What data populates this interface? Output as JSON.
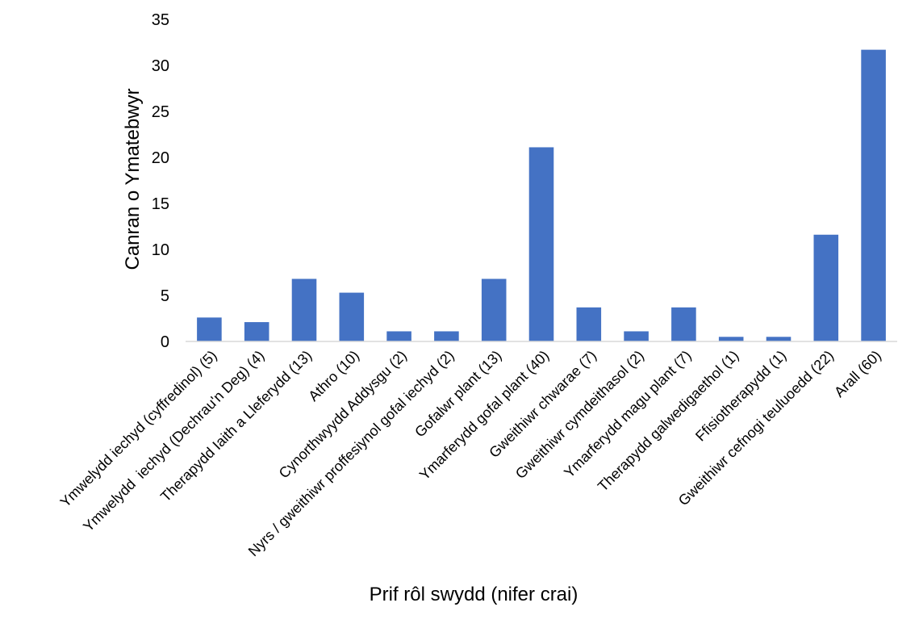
{
  "chart_data": {
    "type": "bar",
    "categories": [
      "Ymwelydd iechyd (cyffredinol) (5)",
      "Ymwelydd  iechyd (Dechrau'n Deg) (4)",
      "Therapydd Iaith a Lleferydd (13)",
      "Athro (10)",
      "Cynorthwyydd Addysgu (2)",
      "Nyrs / gweithiwr proffesiynol gofal iechyd (2)",
      "Gofalwr plant (13)",
      "Ymarferydd gofal plant (40)",
      "Gweithiwr chwarae (7)",
      "Gweithiwr cymdeithasol (2)",
      "Ymarferydd magu plant (7)",
      "Therapydd galwedigaethol (1)",
      "Ffisiotherapydd (1)",
      "Gweithiwr cefnogi teuluoedd (22)",
      "Arall (60)"
    ],
    "values": [
      2.6,
      2.1,
      6.8,
      5.3,
      1.1,
      1.1,
      6.8,
      21.1,
      3.7,
      1.1,
      3.7,
      0.5,
      0.5,
      11.6,
      31.7
    ],
    "ylim": [
      0,
      35
    ],
    "yticks": [
      "0",
      "5",
      "10",
      "15",
      "20",
      "25",
      "30",
      "35"
    ],
    "xlabel": "Prif rôl swydd (nifer crai)",
    "ylabel": "Canran o Ymatebwyr",
    "bar_color": "#4472C4",
    "grid": false,
    "legend": "none"
  }
}
